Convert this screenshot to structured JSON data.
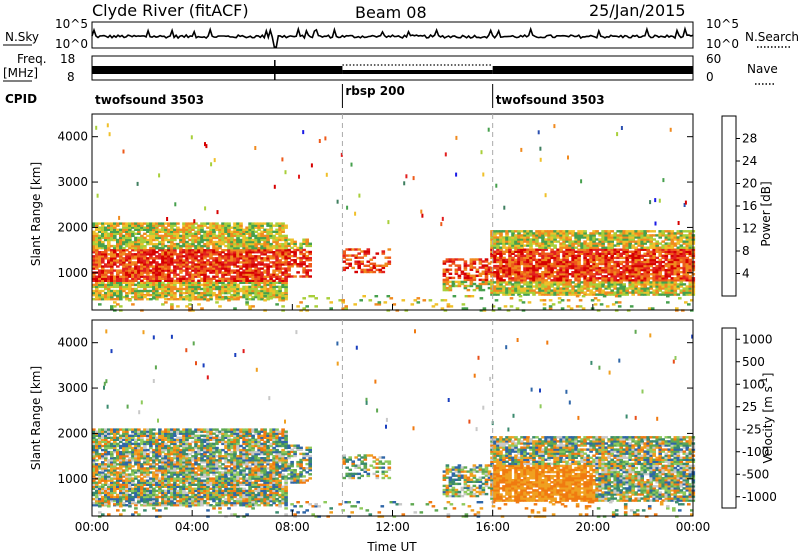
{
  "header": {
    "station": "Clyde River (fitACF)",
    "beam": "Beam 08",
    "date": "25/Jan/2015"
  },
  "nsky": {
    "label": "N.Sky",
    "right_label": "N.Search",
    "yticks": [
      "10^5",
      "10^0"
    ]
  },
  "freq": {
    "label": "Freq.",
    "unit": "[MHz]",
    "yticks_left": [
      "18",
      "8"
    ],
    "yticks_right": [
      "60",
      "0"
    ],
    "right_label": "Nave"
  },
  "cpid": {
    "label": "CPID",
    "segments": [
      {
        "name": "twofsound 3503",
        "start": 0,
        "end": 10
      },
      {
        "name": "rbsp 200",
        "start": 10,
        "end": 16
      },
      {
        "name": "twofsound 3503",
        "start": 16,
        "end": 24
      }
    ]
  },
  "colors": {
    "power_scale": [
      "#1a1ae6",
      "#2b4fb0",
      "#3f7f60",
      "#46a04d",
      "#a8cf3a",
      "#f0c02a",
      "#f08a1f",
      "#ee5a1a",
      "#e21f1f",
      "#d60000"
    ],
    "velocity_scale": [
      "#1a3fbe",
      "#2f66a8",
      "#3a8a6e",
      "#5fa851",
      "#8fca5c",
      "#c8c8c8",
      "#f0a020",
      "#f07a10",
      "#e8501a",
      "#e01a1a"
    ]
  },
  "chart_data": [
    {
      "type": "heatmap",
      "title": "Power",
      "xlabel": "",
      "ylabel": "Slant Range [km]",
      "x_ticks": [
        "00:00",
        "04:00",
        "08:00",
        "12:00",
        "16:00",
        "20:00",
        "00:00"
      ],
      "y_ticks": [
        "1000",
        "2000",
        "3000",
        "4000"
      ],
      "xlim_hours": [
        0,
        24
      ],
      "ylim_km": [
        180,
        4500
      ],
      "colorbar_label": "Power [dB]",
      "colorbar_ticks": [
        "4",
        "8",
        "12",
        "16",
        "20",
        "24",
        "28"
      ],
      "cpid_boundaries_hours": [
        10,
        16
      ]
    },
    {
      "type": "heatmap",
      "title": "Velocity",
      "xlabel": "Time UT",
      "ylabel": "Slant Range [km]",
      "x_ticks": [
        "00:00",
        "04:00",
        "08:00",
        "12:00",
        "16:00",
        "20:00",
        "00:00"
      ],
      "y_ticks": [
        "1000",
        "2000",
        "3000",
        "4000"
      ],
      "xlim_hours": [
        0,
        24
      ],
      "ylim_km": [
        180,
        4500
      ],
      "colorbar_label": "Velocity [m s",
      "colorbar_unit_exp": "-1",
      "colorbar_unit_close": "]",
      "colorbar_ticks": [
        "1000",
        "500",
        "100",
        "25",
        "-25",
        "-100",
        "-500",
        "-1000"
      ],
      "cpid_boundaries_hours": [
        10,
        16
      ]
    }
  ]
}
